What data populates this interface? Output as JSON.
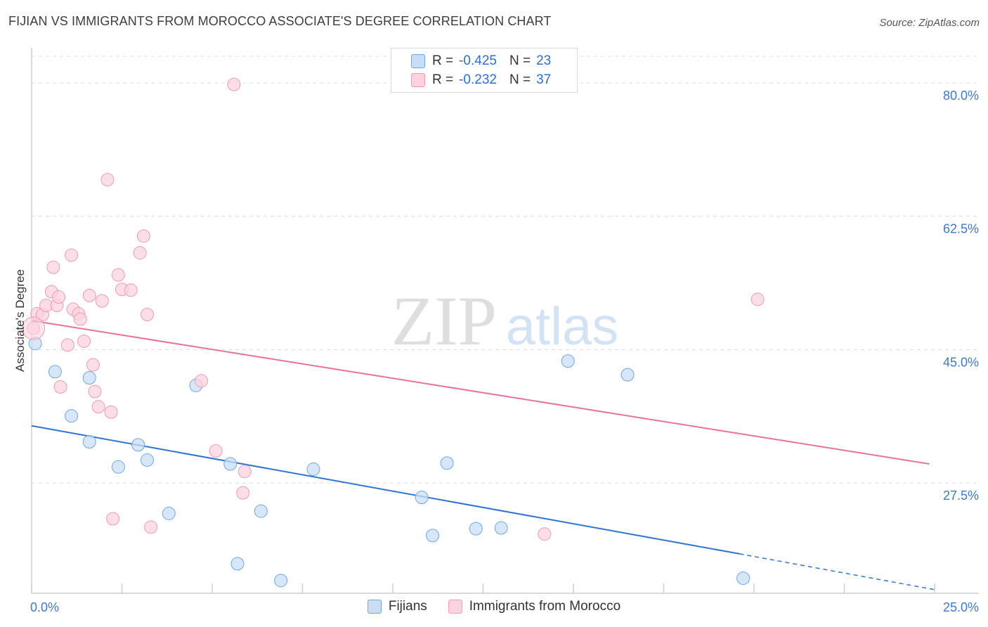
{
  "chart_data": {
    "type": "scatter",
    "title": "FIJIAN VS IMMIGRANTS FROM MOROCCO ASSOCIATE'S DEGREE CORRELATION CHART",
    "source": "Source: ZipAtlas.com",
    "ylabel": "Associate's Degree",
    "xlim": [
      0,
      25
    ],
    "ylim": [
      14.5,
      83.5
    ],
    "x_tick_labels": [
      "0.0%",
      "25.0%"
    ],
    "y_ticks": [
      27.5,
      45.0,
      62.5,
      80.0
    ],
    "y_tick_labels": [
      "27.5%",
      "45.0%",
      "62.5%",
      "80.0%"
    ],
    "watermark": {
      "zip": "ZIP",
      "atlas": "atlas"
    },
    "legend_stats": [
      {
        "r_label": "R =",
        "r_value": "-0.425",
        "n_label": "N =",
        "n_value": "23"
      },
      {
        "r_label": "R =",
        "r_value": "-0.232",
        "n_label": "N =",
        "n_value": "37"
      }
    ],
    "series": [
      {
        "name": "Fijians",
        "color": "#6fa8dc",
        "fill": "#c9ddf5",
        "line_color": "#2f74d0",
        "trend": {
          "x0": 0,
          "y0": 35.0,
          "x1": 19.6,
          "y1": 18.2,
          "dash_to_x": 25.0,
          "dash_to_y": 13.5
        },
        "points": [
          [
            0.1,
            45.8
          ],
          [
            0.65,
            42.1
          ],
          [
            1.1,
            36.3
          ],
          [
            1.6,
            41.3
          ],
          [
            1.6,
            32.9
          ],
          [
            2.4,
            29.6
          ],
          [
            2.95,
            32.5
          ],
          [
            3.2,
            30.5
          ],
          [
            3.8,
            23.5
          ],
          [
            4.55,
            40.3
          ],
          [
            5.5,
            30.0
          ],
          [
            5.7,
            16.9
          ],
          [
            6.35,
            23.8
          ],
          [
            6.9,
            14.7
          ],
          [
            7.8,
            29.3
          ],
          [
            10.8,
            25.6
          ],
          [
            11.1,
            20.6
          ],
          [
            11.5,
            30.1
          ],
          [
            12.3,
            21.5
          ],
          [
            13.0,
            21.6
          ],
          [
            14.85,
            43.5
          ],
          [
            16.5,
            41.7
          ],
          [
            19.7,
            15.0
          ]
        ]
      },
      {
        "name": "Immigrants from Morocco",
        "color": "#f09ab5",
        "fill": "#fbd3df",
        "line_color": "#e8739a",
        "trend": {
          "x0": 0,
          "y0": 48.8,
          "x1": 24.85,
          "y1": 30.0
        },
        "points": [
          [
            0.05,
            47.8
          ],
          [
            0.15,
            49.7
          ],
          [
            0.3,
            49.6
          ],
          [
            0.4,
            50.8
          ],
          [
            0.55,
            52.6
          ],
          [
            0.6,
            55.8
          ],
          [
            0.7,
            50.8
          ],
          [
            0.75,
            51.9
          ],
          [
            0.8,
            40.1
          ],
          [
            1.0,
            45.6
          ],
          [
            1.1,
            57.4
          ],
          [
            1.15,
            50.3
          ],
          [
            1.3,
            49.7
          ],
          [
            1.35,
            49.0
          ],
          [
            1.45,
            46.1
          ],
          [
            1.6,
            52.1
          ],
          [
            1.7,
            43.0
          ],
          [
            1.75,
            39.5
          ],
          [
            1.85,
            37.5
          ],
          [
            1.95,
            51.4
          ],
          [
            2.1,
            67.3
          ],
          [
            2.2,
            36.8
          ],
          [
            2.25,
            22.8
          ],
          [
            2.4,
            54.8
          ],
          [
            2.5,
            52.9
          ],
          [
            2.75,
            52.8
          ],
          [
            3.0,
            57.7
          ],
          [
            3.1,
            59.9
          ],
          [
            3.2,
            49.6
          ],
          [
            3.3,
            21.7
          ],
          [
            4.7,
            40.9
          ],
          [
            5.1,
            31.7
          ],
          [
            5.6,
            79.8
          ],
          [
            5.85,
            26.2
          ],
          [
            5.9,
            29.0
          ],
          [
            14.2,
            20.8
          ],
          [
            20.1,
            51.6
          ]
        ]
      }
    ]
  }
}
